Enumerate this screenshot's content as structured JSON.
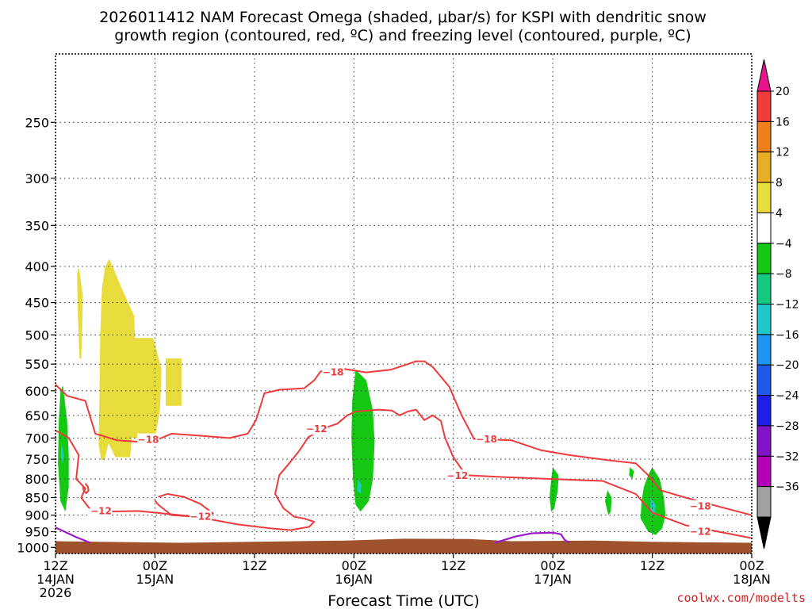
{
  "chart_data": {
    "type": "contour",
    "title_line1": "2026011412 NAM Forecast Omega (shaded, μbar/s) for KSPI with dendritic snow",
    "title_line2": "growth region (contoured, red, ºC) and freezing level (contoured, purple, ºC)",
    "xlabel": "Forecast Time (UTC)",
    "credit": "coolwx.com/modelts",
    "x_ticks": [
      {
        "h": 0,
        "l1": "12Z",
        "l2": "14JAN",
        "l3": "2026"
      },
      {
        "h": 12,
        "l1": "00Z",
        "l2": "15JAN",
        "l3": ""
      },
      {
        "h": 24,
        "l1": "12Z",
        "l2": "",
        "l3": ""
      },
      {
        "h": 36,
        "l1": "00Z",
        "l2": "16JAN",
        "l3": ""
      },
      {
        "h": 48,
        "l1": "12Z",
        "l2": "",
        "l3": ""
      },
      {
        "h": 60,
        "l1": "00Z",
        "l2": "17JAN",
        "l3": ""
      },
      {
        "h": 72,
        "l1": "12Z",
        "l2": "",
        "l3": ""
      },
      {
        "h": 84,
        "l1": "00Z",
        "l2": "18JAN",
        "l3": ""
      }
    ],
    "xlim": [
      0,
      84
    ],
    "y_ticks": [
      250,
      300,
      350,
      400,
      450,
      500,
      550,
      600,
      650,
      700,
      750,
      800,
      850,
      900,
      950,
      1000
    ],
    "ylim": [
      200,
      1020
    ],
    "y_scale": "pressure (inverted)",
    "grid": "dotted",
    "colorbar": {
      "levels": [
        "20",
        "16",
        "12",
        "8",
        "4",
        "−4",
        "−8",
        "−12",
        "−16",
        "−20",
        "−24",
        "−28",
        "−32",
        "−36"
      ],
      "colors": [
        "#e8148c",
        "#f03c3c",
        "#ee7f1c",
        "#e6ae24",
        "#e8dc3c",
        "#ffffff",
        "#14c814",
        "#14c880",
        "#1ec8c8",
        "#1e96f0",
        "#1e5ae6",
        "#1e1ee6",
        "#8214c8",
        "#b400b4",
        "#a0a0a0",
        "#000000"
      ]
    },
    "omega_regions": [
      {
        "color": "#e8dc3c",
        "pts": [
          [
            2.8,
            400
          ],
          [
            3.3,
            440
          ],
          [
            3.2,
            500
          ],
          [
            3.1,
            540
          ],
          [
            2.9,
            540
          ],
          [
            2.7,
            470
          ],
          [
            2.6,
            410
          ]
        ]
      },
      {
        "color": "#e8dc3c",
        "pts": [
          [
            6.5,
            390
          ],
          [
            8,
            430
          ],
          [
            9.5,
            470
          ],
          [
            9.6,
            505
          ],
          [
            11.8,
            505
          ],
          [
            12.8,
            560
          ],
          [
            12.6,
            640
          ],
          [
            12.0,
            700
          ],
          [
            11.0,
            700
          ],
          [
            9.2,
            700
          ],
          [
            9.0,
            745
          ],
          [
            8.4,
            745
          ],
          [
            7.2,
            745
          ],
          [
            6.4,
            712
          ],
          [
            5.9,
            752
          ],
          [
            5.5,
            752
          ],
          [
            5.2,
            715
          ],
          [
            5.3,
            620
          ],
          [
            5.4,
            500
          ],
          [
            5.6,
            430
          ],
          [
            6.0,
            400
          ]
        ]
      },
      {
        "color": "#e8dc3c",
        "pts": [
          [
            13.3,
            540
          ],
          [
            15.2,
            540
          ],
          [
            15.2,
            630
          ],
          [
            13.3,
            630
          ]
        ]
      },
      {
        "color": "#14c814",
        "pts": [
          [
            0.9,
            590
          ],
          [
            1.4,
            660
          ],
          [
            1.6,
            740
          ],
          [
            1.6,
            820
          ],
          [
            1.2,
            890
          ],
          [
            0.6,
            860
          ],
          [
            0.3,
            760
          ],
          [
            0.4,
            660
          ],
          [
            0.6,
            600
          ]
        ]
      },
      {
        "color": "#1ec8c8",
        "pts": [
          [
            0.7,
            710
          ],
          [
            1.0,
            740
          ],
          [
            0.9,
            760
          ],
          [
            0.65,
            745
          ]
        ]
      },
      {
        "color": "#14c814",
        "pts": [
          [
            36.2,
            560
          ],
          [
            37.5,
            580
          ],
          [
            38.3,
            640
          ],
          [
            38.5,
            710
          ],
          [
            38.3,
            800
          ],
          [
            37.8,
            860
          ],
          [
            36.8,
            890
          ],
          [
            36.2,
            870
          ],
          [
            35.9,
            800
          ],
          [
            35.7,
            700
          ],
          [
            35.8,
            620
          ]
        ]
      },
      {
        "color": "#1ec8c8",
        "pts": [
          [
            36.5,
            800
          ],
          [
            36.9,
            815
          ],
          [
            36.8,
            840
          ],
          [
            36.4,
            830
          ]
        ]
      },
      {
        "color": "#14c814",
        "pts": [
          [
            60.0,
            770
          ],
          [
            60.7,
            790
          ],
          [
            60.6,
            830
          ],
          [
            60.2,
            880
          ],
          [
            59.8,
            890
          ],
          [
            59.6,
            850
          ],
          [
            59.8,
            800
          ]
        ]
      },
      {
        "color": "#14c814",
        "pts": [
          [
            66.6,
            830
          ],
          [
            67.1,
            850
          ],
          [
            67.0,
            890
          ],
          [
            66.7,
            900
          ],
          [
            66.3,
            860
          ]
        ]
      },
      {
        "color": "#14c814",
        "pts": [
          [
            69.3,
            770
          ],
          [
            69.8,
            780
          ],
          [
            69.6,
            800
          ],
          [
            69.2,
            790
          ]
        ]
      },
      {
        "color": "#14c814",
        "pts": [
          [
            72.0,
            770
          ],
          [
            72.9,
            800
          ],
          [
            73.4,
            850
          ],
          [
            73.6,
            900
          ],
          [
            73.2,
            940
          ],
          [
            72.4,
            960
          ],
          [
            71.5,
            950
          ],
          [
            70.6,
            910
          ],
          [
            70.7,
            860
          ],
          [
            71.0,
            820
          ],
          [
            71.5,
            790
          ]
        ]
      },
      {
        "color": "#1ec8c8",
        "pts": [
          [
            71.8,
            850
          ],
          [
            72.4,
            870
          ],
          [
            72.3,
            900
          ],
          [
            71.8,
            895
          ]
        ]
      }
    ],
    "contours_red": [
      {
        "label": "−18",
        "label_at": [
          11.2,
          704
        ],
        "pts": [
          [
            0,
            588
          ],
          [
            1.4,
            610
          ],
          [
            3.6,
            620
          ],
          [
            4.8,
            690
          ],
          [
            7.4,
            705
          ],
          [
            9.5,
            708
          ],
          [
            11.5,
            710
          ],
          [
            14.0,
            690
          ],
          [
            17.0,
            694
          ],
          [
            21.0,
            700
          ],
          [
            23.2,
            690
          ],
          [
            24.2,
            660
          ],
          [
            25.2,
            605
          ],
          [
            27.0,
            598
          ],
          [
            30.0,
            595
          ],
          [
            31.2,
            580
          ],
          [
            32.0,
            563
          ],
          [
            34.5,
            558
          ],
          [
            37.5,
            565
          ],
          [
            40.5,
            560
          ],
          [
            42.5,
            550
          ],
          [
            43.5,
            545
          ],
          [
            44.5,
            545
          ],
          [
            45.5,
            555
          ],
          [
            47.5,
            592
          ],
          [
            49.0,
            650
          ],
          [
            50.5,
            702
          ],
          [
            55.0,
            705
          ],
          [
            58.5,
            728
          ],
          [
            62.0,
            740
          ],
          [
            66.5,
            752
          ],
          [
            70.0,
            760
          ],
          [
            71.5,
            790
          ],
          [
            73.0,
            830
          ],
          [
            76.0,
            850
          ],
          [
            80.0,
            875
          ],
          [
            84.0,
            900
          ]
        ]
      },
      {
        "label": "−12",
        "label_at": [
          31.5,
          680
        ],
        "pts": [
          [
            0,
            683
          ],
          [
            1.6,
            700
          ],
          [
            2.8,
            740
          ],
          [
            2.5,
            800
          ],
          [
            3.6,
            825
          ],
          [
            3.1,
            850
          ],
          [
            4.0,
            878
          ],
          [
            5.8,
            890
          ],
          [
            10.0,
            888
          ],
          [
            17.0,
            905
          ],
          [
            22.0,
            928
          ],
          [
            26.0,
            940
          ],
          [
            28.4,
            945
          ],
          [
            30.6,
            935
          ],
          [
            31.2,
            920
          ],
          [
            30.0,
            910
          ],
          [
            28.8,
            905
          ],
          [
            27.5,
            880
          ],
          [
            26.5,
            840
          ],
          [
            27.0,
            790
          ],
          [
            28.2,
            760
          ],
          [
            29.4,
            730
          ],
          [
            30.5,
            698
          ],
          [
            32.4,
            678
          ],
          [
            34.0,
            668
          ],
          [
            35.2,
            650
          ],
          [
            36.2,
            642
          ],
          [
            39.0,
            638
          ],
          [
            40.6,
            640
          ],
          [
            41.5,
            650
          ],
          [
            42.5,
            642
          ],
          [
            43.5,
            638
          ],
          [
            44.5,
            660
          ],
          [
            45.5,
            650
          ],
          [
            46.5,
            662
          ],
          [
            47.0,
            700
          ],
          [
            48.0,
            745
          ],
          [
            49.5,
            790
          ],
          [
            54.0,
            795
          ],
          [
            60.0,
            800
          ],
          [
            66.0,
            805
          ],
          [
            70.0,
            840
          ],
          [
            72.0,
            893
          ],
          [
            76.0,
            930
          ],
          [
            80.0,
            950
          ],
          [
            84.0,
            970
          ]
        ]
      },
      {
        "label": "",
        "label_at": [
          0,
          0
        ],
        "pts": [
          [
            3.6,
            812
          ],
          [
            3.9,
            820
          ],
          [
            4.0,
            830
          ],
          [
            3.7,
            838
          ],
          [
            3.4,
            830
          ],
          [
            3.3,
            818
          ]
        ]
      },
      {
        "label": "−12",
        "label_at": [
          17.5,
          905
        ],
        "pts": [
          [
            12.4,
            848
          ],
          [
            13.5,
            840
          ],
          [
            15.5,
            848
          ],
          [
            17.5,
            868
          ],
          [
            19.0,
            895
          ],
          [
            17.0,
            905
          ],
          [
            14.0,
            900
          ],
          [
            12.4,
            870
          ],
          [
            12.0,
            858
          ]
        ]
      }
    ],
    "contour_labels_extra": [
      {
        "text": "−18",
        "at": [
          33.5,
          565
        ]
      },
      {
        "text": "−18",
        "at": [
          52.0,
          703
        ]
      },
      {
        "text": "−12",
        "at": [
          5.5,
          888
        ]
      },
      {
        "text": "−12",
        "at": [
          48.5,
          792
        ]
      },
      {
        "text": "−18",
        "at": [
          77.8,
          875
        ]
      },
      {
        "text": "−12",
        "at": [
          77.8,
          950
        ]
      }
    ],
    "contours_purple": [
      {
        "pts": [
          [
            0,
            937
          ],
          [
            2.5,
            967
          ],
          [
            4.2,
            985
          ]
        ]
      },
      {
        "pts": [
          [
            53.0,
            985
          ],
          [
            55.5,
            965
          ],
          [
            57.5,
            955
          ],
          [
            60.0,
            953
          ],
          [
            61.0,
            958
          ],
          [
            61.4,
            975
          ],
          [
            62.0,
            985
          ]
        ]
      }
    ],
    "ground_top_pts": [
      [
        0,
        980
      ],
      [
        15,
        985
      ],
      [
        35,
        978
      ],
      [
        42,
        972
      ],
      [
        50,
        973
      ],
      [
        55,
        980
      ],
      [
        65,
        978
      ],
      [
        72,
        982
      ],
      [
        84,
        985
      ]
    ]
  }
}
